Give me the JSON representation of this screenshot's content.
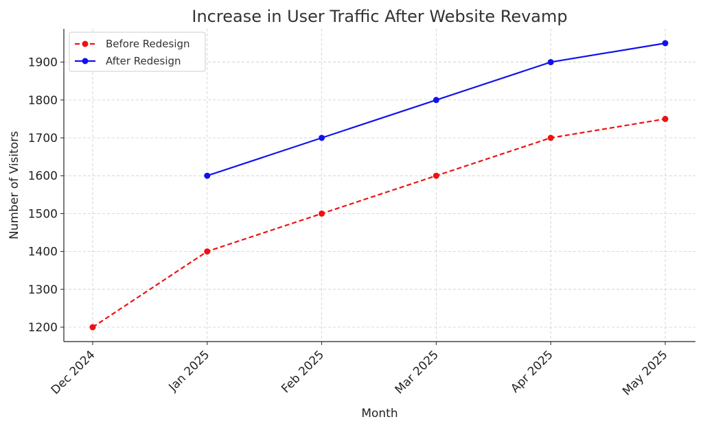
{
  "chart_data": {
    "type": "line",
    "title": "Increase in User Traffic After Website Revamp",
    "xlabel": "Month",
    "ylabel": "Number of Visitors",
    "categories": [
      "Dec 2024",
      "Jan 2025",
      "Feb 2025",
      "Mar 2025",
      "Apr 2025",
      "May 2025"
    ],
    "yticks": [
      1200,
      1300,
      1400,
      1500,
      1600,
      1700,
      1800,
      1900
    ],
    "ylim": [
      1162,
      1988
    ],
    "grid": true,
    "legend_position": "top-left",
    "series": [
      {
        "name": "Before Redesign",
        "color": "#ee1111",
        "line_style": "dashed",
        "marker": "circle",
        "values": [
          1200,
          1400,
          1500,
          1600,
          1700,
          1750
        ]
      },
      {
        "name": "After Redesign",
        "color": "#1111ee",
        "line_style": "solid",
        "marker": "circle",
        "values": [
          null,
          1600,
          1700,
          1800,
          1900,
          1950
        ]
      }
    ]
  }
}
